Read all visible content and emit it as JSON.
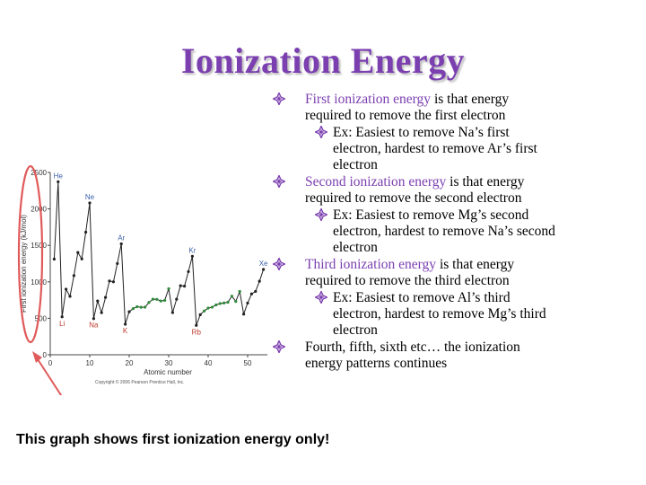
{
  "title": "Ionization Energy",
  "colors": {
    "title": "#7b3fb0",
    "highlight": "#7b3fb0",
    "bullet": "#7b3fb0",
    "annotation": "#e05a5a"
  },
  "bullets": [
    {
      "level": 1,
      "highlight": "First ionization energy",
      "text": " is that energy required to remove the first electron"
    },
    {
      "level": 2,
      "highlight": "",
      "text": "Ex: Easiest to remove Na’s first electron, hardest to remove Ar’s first electron"
    },
    {
      "level": 1,
      "highlight": "Second ionization energy",
      "text": " is that energy required to remove the second electron"
    },
    {
      "level": 2,
      "highlight": "",
      "text": "Ex: Easiest to remove Mg’s second electron, hardest to remove Na’s second electron"
    },
    {
      "level": 1,
      "highlight": "Third ionization energy",
      "text": " is that energy required to remove the third electron"
    },
    {
      "level": 2,
      "highlight": "",
      "text": "Ex: Easiest to remove Al’s third electron, hardest to remove Mg’s third electron"
    },
    {
      "level": 1,
      "highlight": "",
      "text": "Fourth, fifth, sixth etc… the ionization energy patterns continues"
    }
  ],
  "caption": "This graph shows first ionization energy only!",
  "chart_data": {
    "type": "line",
    "xlabel": "Atomic number",
    "ylabel": "First ionization energy (kJ/mol)",
    "xlim": [
      0,
      55
    ],
    "ylim": [
      0,
      2500
    ],
    "xticks": [
      0,
      10,
      20,
      30,
      40,
      50
    ],
    "yticks": [
      0,
      500,
      1000,
      1500,
      2000,
      2500
    ],
    "copyright": "Copyright © 2006 Pearson Prentice Hall, Inc.",
    "x": [
      1,
      2,
      3,
      4,
      5,
      6,
      7,
      8,
      9,
      10,
      11,
      12,
      13,
      14,
      15,
      16,
      17,
      18,
      19,
      20,
      21,
      22,
      23,
      24,
      25,
      26,
      27,
      28,
      29,
      30,
      31,
      32,
      33,
      34,
      35,
      36,
      37,
      38,
      39,
      40,
      41,
      42,
      43,
      44,
      45,
      46,
      47,
      48,
      49,
      50,
      51,
      52,
      53,
      54
    ],
    "values": [
      1312,
      2372,
      520,
      900,
      801,
      1086,
      1402,
      1314,
      1681,
      2081,
      496,
      738,
      578,
      787,
      1012,
      1000,
      1251,
      1521,
      419,
      590,
      633,
      659,
      651,
      653,
      717,
      762,
      760,
      737,
      746,
      906,
      579,
      762,
      947,
      941,
      1140,
      1351,
      403,
      550,
      600,
      640,
      652,
      684,
      702,
      710,
      720,
      804,
      731,
      868,
      558,
      709,
      834,
      869,
      1008,
      1170
    ],
    "series_colors": {
      "transition": "#2e8b3a",
      "main": "#222222",
      "alkali_label": "#c0392b",
      "noble_label": "#3a5fa8"
    },
    "labels": [
      {
        "text": "He",
        "x": 2,
        "group": "noble"
      },
      {
        "text": "Ne",
        "x": 10,
        "group": "noble"
      },
      {
        "text": "Ar",
        "x": 18,
        "group": "noble"
      },
      {
        "text": "Kr",
        "x": 36,
        "group": "noble"
      },
      {
        "text": "Xe",
        "x": 54,
        "group": "noble"
      },
      {
        "text": "Li",
        "x": 3,
        "group": "alkali"
      },
      {
        "text": "Na",
        "x": 11,
        "group": "alkali"
      },
      {
        "text": "K",
        "x": 19,
        "group": "alkali"
      },
      {
        "text": "Rb",
        "x": 37,
        "group": "alkali"
      }
    ]
  }
}
